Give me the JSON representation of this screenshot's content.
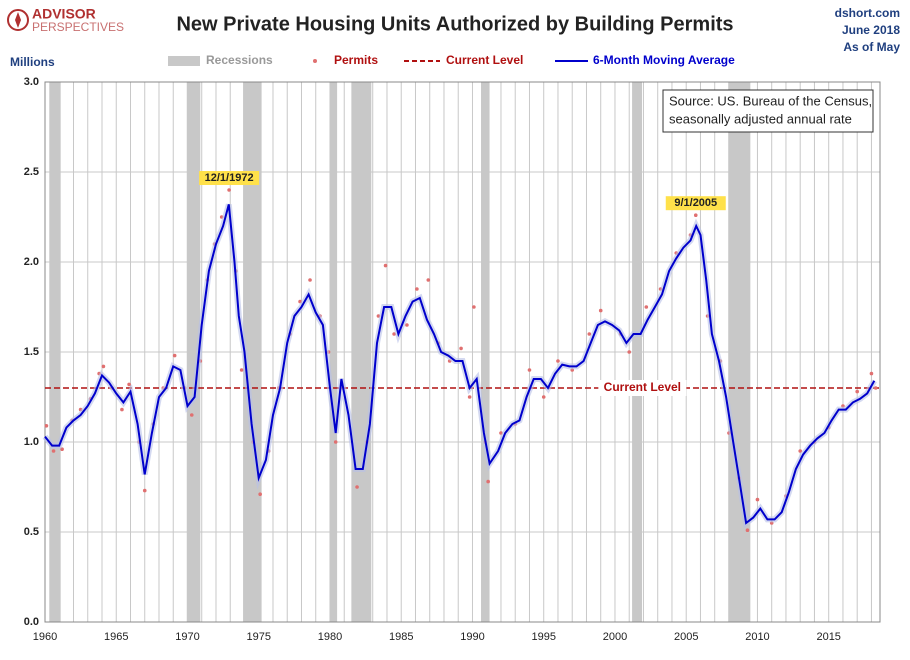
{
  "header": {
    "logo_top": "ADVISOR",
    "logo_bottom": "PERSPECTIVES",
    "source_site": "dshort.com",
    "date_line": "June 2018",
    "as_of": "As of May"
  },
  "chart_data": {
    "type": "line",
    "title": "New Private Housing Units Authorized by Building Permits",
    "ylabel": "Millions",
    "source_note": [
      "Source: US. Bureau of the Census,",
      "seasonally adjusted annual rate"
    ],
    "xlim": [
      1960,
      2018.6
    ],
    "ylim": [
      0,
      3
    ],
    "xticks": [
      1960,
      1965,
      1970,
      1975,
      1980,
      1985,
      1990,
      1995,
      2000,
      2005,
      2010,
      2015
    ],
    "yticks": [
      {
        "value": 0,
        "label": "0.0"
      },
      0.5,
      {
        "value": 1,
        "label": "1.0"
      },
      1.5,
      {
        "value": 2,
        "label": "2.0"
      },
      2.5,
      {
        "value": 3,
        "label": "3.0"
      }
    ],
    "grid": true,
    "recessions": {
      "name": "Recessions",
      "color": "#c8c8c8",
      "periods": [
        [
          1960.3,
          1961.1
        ],
        [
          1969.95,
          1970.9
        ],
        [
          1973.9,
          1975.2
        ],
        [
          1980.0,
          1980.5
        ],
        [
          1981.5,
          1982.9
        ],
        [
          1990.6,
          1991.2
        ],
        [
          2001.2,
          2001.9
        ],
        [
          2007.95,
          2009.5
        ]
      ]
    },
    "reference_line": {
      "name": "Current Level",
      "color": "#b01010",
      "value": 1.3
    },
    "annotations": [
      {
        "text": "12/1/1972",
        "x": 1972.92,
        "y": 2.4
      },
      {
        "text": "9/1/2005",
        "x": 2005.67,
        "y": 2.26
      }
    ],
    "series": [
      {
        "name": "Permits",
        "color": "#e07070",
        "marker": "dot",
        "x": [
          1960.1,
          1960.6,
          1961.2,
          1961.9,
          1962.5,
          1963.2,
          1963.8,
          1964.1,
          1964.7,
          1965.4,
          1965.9,
          1966.6,
          1967.0,
          1967.6,
          1968.3,
          1969.1,
          1969.8,
          1970.3,
          1970.9,
          1971.4,
          1971.9,
          1972.4,
          1972.92,
          1973.4,
          1973.8,
          1974.6,
          1975.1,
          1975.7,
          1976.4,
          1977.2,
          1977.9,
          1978.6,
          1979.3,
          1979.9,
          1980.4,
          1980.9,
          1981.9,
          1982.6,
          1983.4,
          1983.9,
          1984.5,
          1985.4,
          1986.1,
          1986.9,
          1987.6,
          1988.4,
          1989.2,
          1989.8,
          1990.1,
          1990.9,
          1991.1,
          1992.0,
          1993.0,
          1994.0,
          1995.0,
          1996.0,
          1997.0,
          1998.2,
          1999.0,
          2000.4,
          2001.0,
          2002.2,
          2003.2,
          2004.3,
          2005.3,
          2005.67,
          2006.5,
          2007.4,
          2008.0,
          2008.7,
          2009.3,
          2010.0,
          2011.0,
          2012.0,
          2013.0,
          2014.0,
          2015.0,
          2016.0,
          2017.0,
          2018.0,
          2018.3
        ],
        "values": [
          1.09,
          0.95,
          0.96,
          1.12,
          1.18,
          1.24,
          1.38,
          1.42,
          1.3,
          1.18,
          1.32,
          1.0,
          0.73,
          1.1,
          1.3,
          1.48,
          1.3,
          1.15,
          1.45,
          1.9,
          2.1,
          2.25,
          2.4,
          1.95,
          1.4,
          1.0,
          0.71,
          0.95,
          1.3,
          1.6,
          1.78,
          1.9,
          1.7,
          1.5,
          1.0,
          1.3,
          0.75,
          1.0,
          1.7,
          1.98,
          1.6,
          1.65,
          1.85,
          1.9,
          1.55,
          1.45,
          1.52,
          1.25,
          1.75,
          1.0,
          0.78,
          1.05,
          1.1,
          1.4,
          1.25,
          1.45,
          1.4,
          1.6,
          1.73,
          1.6,
          1.5,
          1.75,
          1.85,
          2.05,
          2.15,
          2.26,
          1.7,
          1.45,
          1.05,
          0.8,
          0.51,
          0.68,
          0.55,
          0.7,
          0.95,
          1.0,
          1.08,
          1.2,
          1.28,
          1.38,
          1.3
        ]
      },
      {
        "name": "6-Month Moving Average",
        "color": "#0000cc",
        "marker": "line",
        "x": [
          1960,
          1960.5,
          1961,
          1961.5,
          1962,
          1962.5,
          1963,
          1963.5,
          1964,
          1964.5,
          1965,
          1965.5,
          1966,
          1966.5,
          1967,
          1967.5,
          1968,
          1968.5,
          1969,
          1969.5,
          1970,
          1970.5,
          1971,
          1971.5,
          1972,
          1972.5,
          1972.9,
          1973.3,
          1973.6,
          1974,
          1974.5,
          1975,
          1975.5,
          1976,
          1976.5,
          1977,
          1977.5,
          1978,
          1978.5,
          1979,
          1979.5,
          1980,
          1980.4,
          1980.8,
          1981.3,
          1981.8,
          1982.3,
          1982.8,
          1983.3,
          1983.8,
          1984.3,
          1984.8,
          1985.3,
          1985.8,
          1986.3,
          1986.8,
          1987.3,
          1987.8,
          1988.3,
          1988.8,
          1989.3,
          1989.8,
          1990.3,
          1990.8,
          1991.2,
          1991.8,
          1992.3,
          1992.8,
          1993.3,
          1993.8,
          1994.3,
          1994.8,
          1995.3,
          1995.8,
          1996.3,
          1996.8,
          1997.3,
          1997.8,
          1998.3,
          1998.8,
          1999.3,
          1999.8,
          2000.3,
          2000.8,
          2001.3,
          2001.8,
          2002.3,
          2002.8,
          2003.3,
          2003.8,
          2004.3,
          2004.8,
          2005.3,
          2005.7,
          2006.0,
          2006.4,
          2006.8,
          2007.3,
          2007.8,
          2008.3,
          2008.8,
          2009.2,
          2009.7,
          2010.2,
          2010.7,
          2011.2,
          2011.7,
          2012.2,
          2012.7,
          2013.2,
          2013.7,
          2014.2,
          2014.7,
          2015.2,
          2015.7,
          2016.2,
          2016.7,
          2017.2,
          2017.7,
          2018.2
        ],
        "values": [
          1.03,
          0.98,
          0.98,
          1.08,
          1.12,
          1.15,
          1.2,
          1.27,
          1.37,
          1.33,
          1.27,
          1.22,
          1.28,
          1.1,
          0.82,
          1.05,
          1.25,
          1.3,
          1.42,
          1.4,
          1.2,
          1.25,
          1.65,
          1.95,
          2.1,
          2.2,
          2.32,
          2.0,
          1.7,
          1.5,
          1.1,
          0.8,
          0.9,
          1.15,
          1.3,
          1.55,
          1.7,
          1.75,
          1.82,
          1.72,
          1.65,
          1.3,
          1.05,
          1.35,
          1.15,
          0.85,
          0.85,
          1.1,
          1.55,
          1.75,
          1.75,
          1.6,
          1.7,
          1.78,
          1.8,
          1.68,
          1.6,
          1.5,
          1.48,
          1.45,
          1.45,
          1.3,
          1.35,
          1.05,
          0.88,
          0.95,
          1.05,
          1.1,
          1.12,
          1.25,
          1.35,
          1.35,
          1.3,
          1.38,
          1.43,
          1.42,
          1.42,
          1.45,
          1.55,
          1.65,
          1.67,
          1.65,
          1.62,
          1.55,
          1.6,
          1.6,
          1.68,
          1.75,
          1.82,
          1.95,
          2.02,
          2.08,
          2.12,
          2.2,
          2.15,
          1.9,
          1.6,
          1.45,
          1.25,
          1.0,
          0.75,
          0.55,
          0.58,
          0.63,
          0.57,
          0.57,
          0.61,
          0.72,
          0.85,
          0.93,
          0.98,
          1.02,
          1.05,
          1.12,
          1.18,
          1.18,
          1.22,
          1.24,
          1.27,
          1.34
        ]
      }
    ]
  }
}
